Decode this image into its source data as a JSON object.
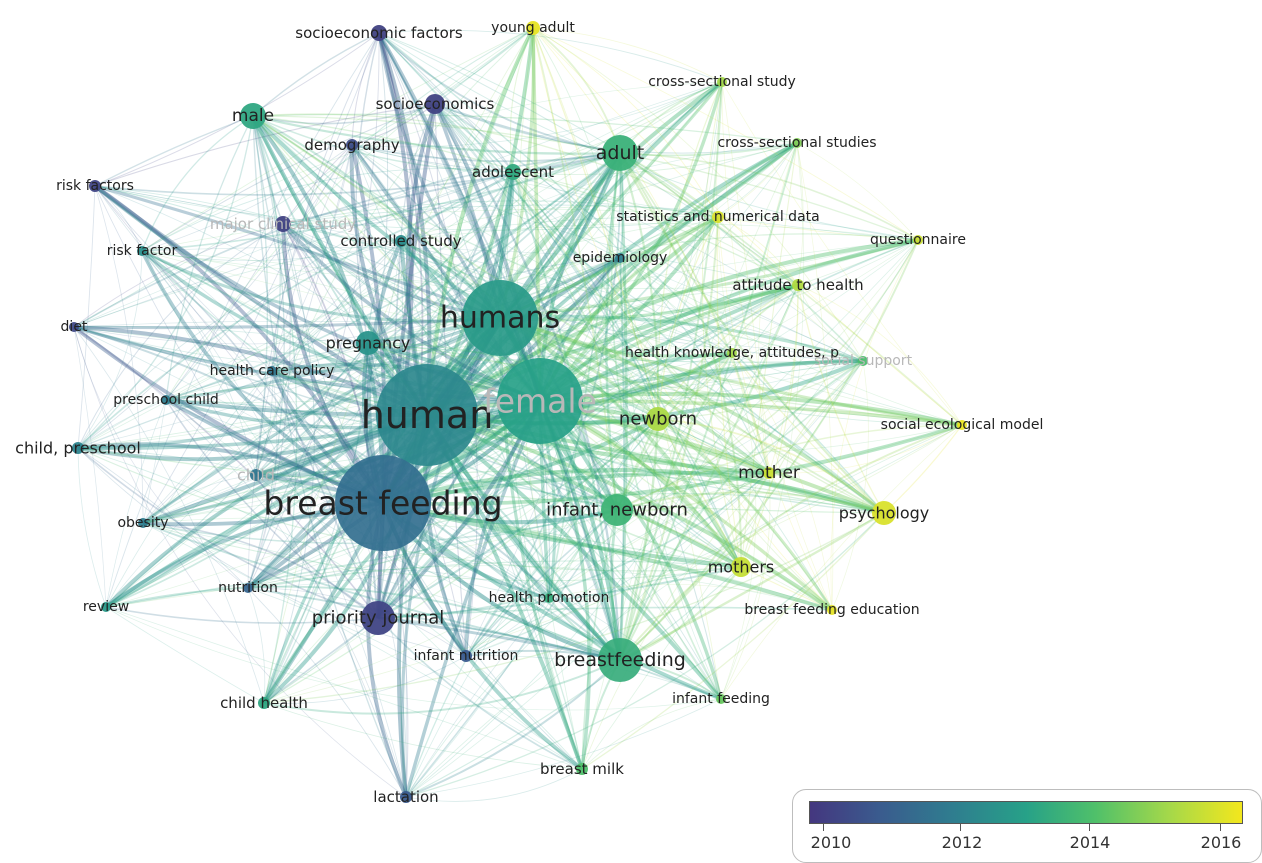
{
  "colors": {
    "y2010": "#44377f",
    "y2012": "#2f7d8f",
    "y2014": "#4fc06a",
    "y2016": "#f3e71d"
  },
  "network": {
    "nodes": [
      {
        "label": "human",
        "year": 2012.3
      },
      {
        "label": "breast feeding",
        "year": 2011.6
      },
      {
        "label": "female",
        "year": 2013.0
      },
      {
        "label": "humans",
        "year": 2012.8
      },
      {
        "label": "adult",
        "year": 2013.5
      },
      {
        "label": "male",
        "year": 2013.2
      },
      {
        "label": "socioeconomic factors",
        "year": 2010.3
      },
      {
        "label": "socioeconomics",
        "year": 2010.3
      },
      {
        "label": "young adult",
        "year": 2016.0
      },
      {
        "label": "cross-sectional study",
        "year": 2015.0
      },
      {
        "label": "cross-sectional studies",
        "year": 2014.6
      },
      {
        "label": "demography",
        "year": 2010.6
      },
      {
        "label": "adolescent",
        "year": 2013.3
      },
      {
        "label": "risk factors",
        "year": 2010.4
      },
      {
        "label": "major clinical study",
        "year": 2010.3
      },
      {
        "label": "controlled study",
        "year": 2012.4
      },
      {
        "label": "statistics and numerical data",
        "year": 2015.8
      },
      {
        "label": "questionnaire",
        "year": 2015.6
      },
      {
        "label": "risk factor",
        "year": 2012.5
      },
      {
        "label": "epidemiology",
        "year": 2012.0
      },
      {
        "label": "attitude to health",
        "year": 2015.2
      },
      {
        "label": "diet",
        "year": 2010.5
      },
      {
        "label": "pregnancy",
        "year": 2012.6
      },
      {
        "label": "health knowledge, attitudes, p",
        "year": 2015.0
      },
      {
        "label": "social support",
        "year": 2013.9
      },
      {
        "label": "health care policy",
        "year": 2011.8
      },
      {
        "label": "preschool child",
        "year": 2012.0
      },
      {
        "label": "newborn",
        "year": 2015.1
      },
      {
        "label": "social ecological model",
        "year": 2016.1
      },
      {
        "label": "child, preschool",
        "year": 2012.2
      },
      {
        "label": "child",
        "year": 2011.8
      },
      {
        "label": "mother",
        "year": 2015.6
      },
      {
        "label": "infant, newborn",
        "year": 2013.6
      },
      {
        "label": "psychology",
        "year": 2015.8
      },
      {
        "label": "obesity",
        "year": 2012.0
      },
      {
        "label": "mothers",
        "year": 2015.5
      },
      {
        "label": "nutrition",
        "year": 2011.3
      },
      {
        "label": "health promotion",
        "year": 2013.4
      },
      {
        "label": "breast feeding education",
        "year": 2016.0
      },
      {
        "label": "review",
        "year": 2012.8
      },
      {
        "label": "priority journal",
        "year": 2010.4
      },
      {
        "label": "infant nutrition",
        "year": 2011.0
      },
      {
        "label": "breastfeeding",
        "year": 2013.4
      },
      {
        "label": "child health",
        "year": 2013.2
      },
      {
        "label": "infant feeding",
        "year": 2014.3
      },
      {
        "label": "breast milk",
        "year": 2014.0
      },
      {
        "label": "lactation",
        "year": 2011.0
      }
    ]
  },
  "legend": {
    "ticks": [
      "2010",
      "2012",
      "2014",
      "2016"
    ]
  }
}
